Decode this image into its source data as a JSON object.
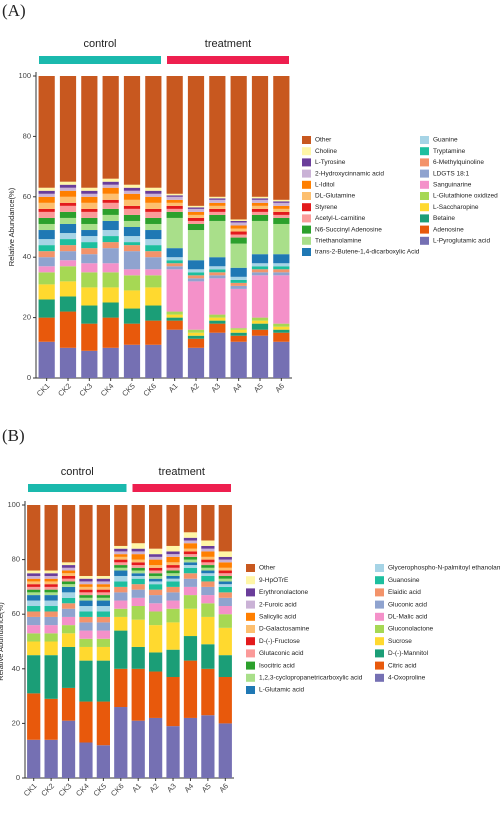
{
  "chart_data": [
    {
      "type": "bar",
      "stacked": true,
      "panel_label": "(A)",
      "ylabel": "Relative Abundance(%)",
      "categories": [
        "CK1",
        "CK2",
        "CK3",
        "CK4",
        "CK5",
        "CK6",
        "A1",
        "A2",
        "A3",
        "A4",
        "A5",
        "A6"
      ],
      "groups": [
        {
          "name": "control",
          "color": "#1ab9ad"
        },
        {
          "name": "treatment",
          "color": "#ee1f4f"
        }
      ],
      "ylim": [
        0,
        100
      ],
      "yticks": [
        0,
        20,
        40,
        60,
        80,
        100
      ],
      "series": [
        {
          "name": "Other",
          "color": "#c8581f",
          "values": [
            37,
            35,
            37,
            34,
            36,
            37,
            39,
            43,
            40,
            47.5,
            40,
            41
          ]
        },
        {
          "name": "Choline",
          "color": "#fff6a6",
          "values": [
            1,
            1,
            1,
            1,
            1,
            1,
            0.5,
            0.5,
            0.5,
            0.5,
            0.5,
            0.5
          ]
        },
        {
          "name": "L-Tyrosine",
          "color": "#6a3d9a",
          "values": [
            1,
            1,
            1,
            1,
            1,
            1,
            0.5,
            0.5,
            0.5,
            0.5,
            0.5,
            0.5
          ]
        },
        {
          "name": "2-Hydroxycinnamic acid",
          "color": "#cab2d6",
          "values": [
            1,
            1,
            1,
            1,
            1,
            1,
            1,
            1,
            1,
            1,
            1,
            1
          ]
        },
        {
          "name": "L-Iditol",
          "color": "#ff7f00",
          "values": [
            2,
            2,
            2,
            2,
            2,
            2,
            1,
            1,
            1,
            1,
            1,
            1
          ]
        },
        {
          "name": "DL-Glutamine",
          "color": "#fdbf6f",
          "values": [
            2,
            2,
            2,
            2,
            2,
            2,
            1,
            1,
            1,
            1,
            1,
            1
          ]
        },
        {
          "name": "Styrene",
          "color": "#e31a1c",
          "values": [
            1,
            1,
            1,
            1,
            1,
            1,
            1,
            1,
            1,
            1,
            1,
            1
          ]
        },
        {
          "name": "Acetyl-L-carnitine",
          "color": "#fb9a99",
          "values": [
            2,
            2,
            2,
            2,
            2,
            2,
            1,
            1,
            1,
            1,
            1,
            1
          ]
        },
        {
          "name": "N6-Succinyl Adenosine",
          "color": "#2ca02c",
          "values": [
            2,
            2,
            2,
            2,
            2,
            2,
            2,
            2,
            2,
            2,
            2,
            2
          ]
        },
        {
          "name": "Triethanolamine",
          "color": "#a9df8a",
          "values": [
            2,
            2,
            2,
            2,
            2,
            2,
            10,
            10,
            12,
            8,
            11,
            10
          ]
        },
        {
          "name": "trans-2-Butene-1,4-dicarboxylic Acid",
          "color": "#1f78b4",
          "values": [
            3,
            3,
            2,
            3,
            3,
            3,
            3,
            3,
            3,
            3,
            3,
            3
          ]
        },
        {
          "name": "Guanine",
          "color": "#a6d4e6",
          "values": [
            2,
            2,
            2,
            2,
            2,
            2,
            1,
            1,
            1,
            1,
            1,
            1
          ]
        },
        {
          "name": "Tryptamine",
          "color": "#1dbf9f",
          "values": [
            2,
            2,
            2,
            2,
            1,
            2,
            1,
            1,
            1,
            1,
            1,
            1
          ]
        },
        {
          "name": "6-Methylquinoline",
          "color": "#f3936a",
          "values": [
            2,
            2,
            2,
            2,
            2,
            2,
            1,
            1,
            1,
            1,
            1,
            1
          ]
        },
        {
          "name": "LDGTS 18:1",
          "color": "#8fa3cf",
          "values": [
            3,
            3,
            3,
            5,
            6,
            4,
            1,
            1,
            1,
            1,
            1,
            1
          ]
        },
        {
          "name": "Sanguinarine",
          "color": "#f491c9",
          "values": [
            2,
            2,
            3,
            3,
            2,
            2,
            14,
            16,
            12,
            13,
            14,
            16
          ]
        },
        {
          "name": "L-Glutathione oxidized",
          "color": "#a6d854",
          "values": [
            4,
            5,
            5,
            5,
            5,
            4,
            1,
            1,
            1,
            0.5,
            1,
            1
          ]
        },
        {
          "name": "L-Saccharopine",
          "color": "#ffd92f",
          "values": [
            5,
            5,
            6,
            5,
            6,
            6,
            1,
            1,
            1,
            1,
            1,
            1
          ]
        },
        {
          "name": "Betaine",
          "color": "#1b9e77",
          "values": [
            6,
            5,
            6,
            5,
            5,
            5,
            1,
            1,
            1,
            1,
            2,
            1
          ]
        },
        {
          "name": "Adenosine",
          "color": "#e8590c",
          "values": [
            8,
            12,
            9,
            10,
            7,
            8,
            3,
            3,
            3,
            2,
            2,
            3
          ]
        },
        {
          "name": "L-Pyroglutamic acid",
          "color": "#7570b3",
          "values": [
            12,
            10,
            9,
            10,
            11,
            11,
            16,
            10,
            15,
            12,
            14,
            12
          ]
        }
      ]
    },
    {
      "type": "bar",
      "stacked": true,
      "panel_label": "(B)",
      "ylabel": "Relative Abundance(%)",
      "categories": [
        "CK1",
        "CK2",
        "CK3",
        "CK4",
        "CK5",
        "CK6",
        "A1",
        "A2",
        "A3",
        "A4",
        "A5",
        "A6"
      ],
      "groups": [
        {
          "name": "control",
          "color": "#1ab9ad"
        },
        {
          "name": "treatment",
          "color": "#ee1f4f"
        }
      ],
      "ylim": [
        0,
        100
      ],
      "yticks": [
        0,
        20,
        40,
        60,
        80,
        100
      ],
      "series": [
        {
          "name": "Other",
          "color": "#c8581f",
          "values": [
            24,
            24,
            21,
            26,
            26,
            15,
            14,
            16,
            15,
            10,
            13,
            17
          ]
        },
        {
          "name": "9-HpOTrE",
          "color": "#fff6a6",
          "values": [
            1,
            1,
            1,
            1,
            1,
            1,
            2,
            2,
            2,
            2,
            2,
            2
          ]
        },
        {
          "name": "Erythronolactone",
          "color": "#6a3d9a",
          "values": [
            1,
            1,
            1,
            1,
            1,
            1,
            1,
            1,
            1,
            1,
            1,
            1
          ]
        },
        {
          "name": "2-Furoic acid",
          "color": "#cab2d6",
          "values": [
            1,
            1,
            1,
            1,
            1,
            1,
            1,
            1,
            1,
            1,
            1,
            1
          ]
        },
        {
          "name": "Salicylic acid",
          "color": "#ff7f00",
          "values": [
            1,
            1,
            1,
            1,
            1,
            1,
            2,
            2,
            2,
            2,
            2,
            2
          ]
        },
        {
          "name": "D-Galactosamine",
          "color": "#fdbf6f",
          "values": [
            1,
            1,
            1,
            1,
            1,
            1,
            1,
            1,
            1,
            1,
            1,
            1
          ]
        },
        {
          "name": "D-(-)-Fructose",
          "color": "#e31a1c",
          "values": [
            1,
            1,
            1,
            1,
            1,
            1,
            1,
            1,
            1,
            1,
            1,
            1
          ]
        },
        {
          "name": "Glutaconic acid",
          "color": "#fb9a99",
          "values": [
            1,
            1,
            1,
            1,
            1,
            1,
            1,
            1,
            1,
            1,
            1,
            1
          ]
        },
        {
          "name": "Isocitric acid",
          "color": "#2ca02c",
          "values": [
            1,
            1,
            1,
            1,
            1,
            1,
            1,
            1,
            1,
            1,
            1,
            1
          ]
        },
        {
          "name": "1,2,3-cyclopropanetricarboxylic acid",
          "color": "#a9df8a",
          "values": [
            1,
            1,
            1,
            1,
            1,
            1,
            1,
            1,
            1,
            1,
            1,
            1
          ]
        },
        {
          "name": "L-Glutamic acid",
          "color": "#1f78b4",
          "values": [
            2,
            2,
            2,
            2,
            2,
            2,
            1,
            1,
            1,
            1,
            1,
            1
          ]
        },
        {
          "name": "Glycerophospho-N-palmitoyl ethanolamine",
          "color": "#a6d4e6",
          "values": [
            2,
            2,
            2,
            2,
            2,
            2,
            1,
            1,
            1,
            1,
            1,
            1
          ]
        },
        {
          "name": "Guanosine",
          "color": "#1dbf9f",
          "values": [
            2,
            2,
            2,
            2,
            2,
            2,
            2,
            2,
            2,
            2,
            2,
            2
          ]
        },
        {
          "name": "Elaidic acid",
          "color": "#f3936a",
          "values": [
            2,
            2,
            2,
            2,
            2,
            2,
            2,
            2,
            2,
            2,
            2,
            2
          ]
        },
        {
          "name": "Gluconic acid",
          "color": "#8fa3cf",
          "values": [
            3,
            3,
            3,
            3,
            3,
            3,
            3,
            3,
            3,
            3,
            3,
            3
          ]
        },
        {
          "name": "DL-Malic acid",
          "color": "#f491c9",
          "values": [
            3,
            3,
            3,
            3,
            3,
            3,
            3,
            3,
            3,
            3,
            3,
            3
          ]
        },
        {
          "name": "Gluconolactone",
          "color": "#a6d854",
          "values": [
            3,
            3,
            3,
            3,
            3,
            3,
            5,
            5,
            5,
            5,
            5,
            5
          ]
        },
        {
          "name": "Sucrose",
          "color": "#ffd92f",
          "values": [
            5,
            5,
            5,
            5,
            5,
            5,
            10,
            10,
            10,
            10,
            10,
            10
          ]
        },
        {
          "name": "D-(-)-Mannitol",
          "color": "#1b9e77",
          "values": [
            14,
            16,
            15,
            15,
            15,
            14,
            8,
            7,
            10,
            9,
            9,
            8
          ]
        },
        {
          "name": "Citric acid",
          "color": "#e8590c",
          "values": [
            17,
            15,
            12,
            15,
            16,
            14,
            19,
            17,
            18,
            21,
            17,
            17
          ]
        },
        {
          "name": "4-Oxoproline",
          "color": "#7570b3",
          "values": [
            14,
            14,
            21,
            13,
            12,
            26,
            21,
            22,
            19,
            22,
            23,
            20
          ]
        }
      ]
    }
  ]
}
